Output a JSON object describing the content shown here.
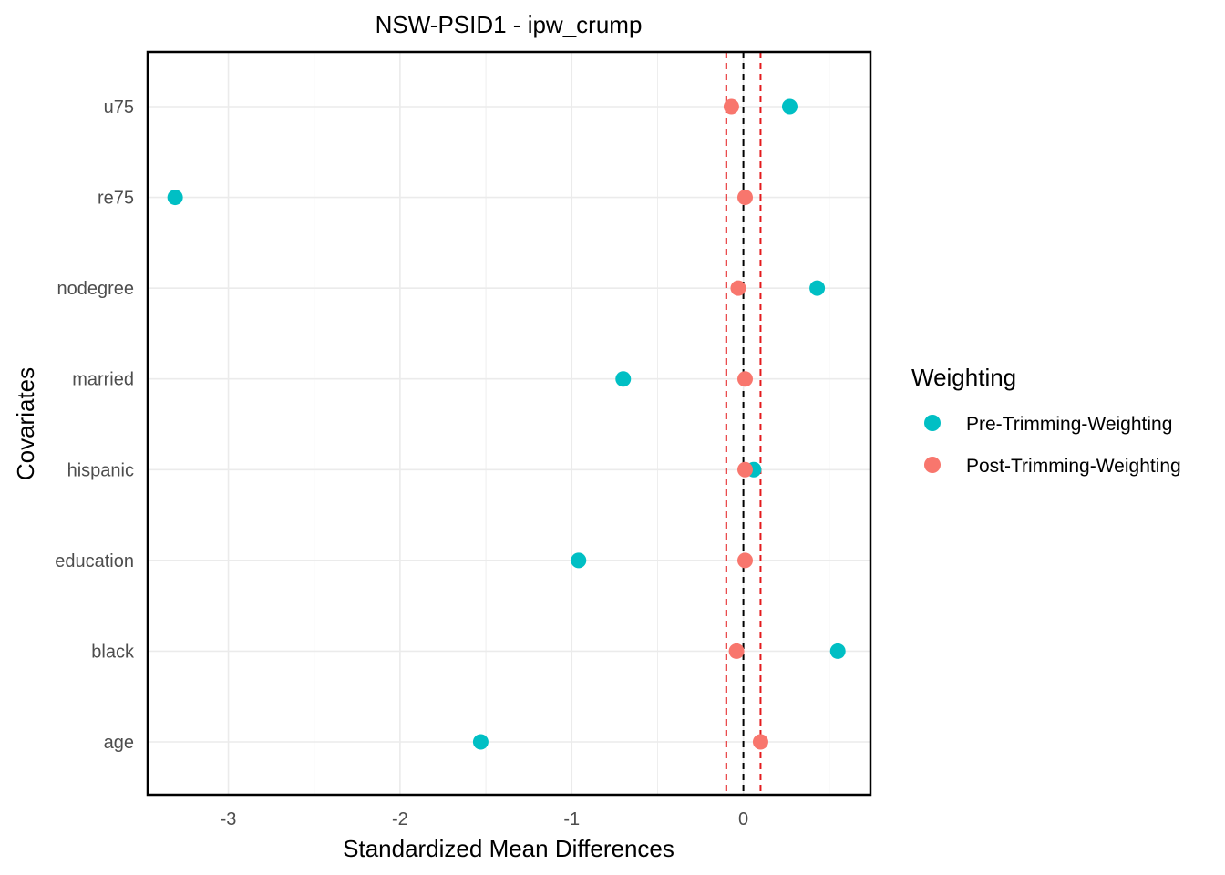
{
  "chart_data": {
    "type": "scatter",
    "title": "NSW-PSID1 - ipw_crump",
    "xlabel": "Standardized Mean Differences",
    "ylabel": "Covariates",
    "categories": [
      "age",
      "black",
      "education",
      "hispanic",
      "married",
      "nodegree",
      "re75",
      "u75"
    ],
    "x_ticks": [
      -3,
      -2,
      -1,
      0
    ],
    "xlim": [
      -3.47,
      0.74
    ],
    "grid": true,
    "reference_lines": {
      "center": 0,
      "threshold": [
        -0.1,
        0.1
      ]
    },
    "legend": {
      "title": "Weighting",
      "position": "right"
    },
    "series": [
      {
        "name": "Pre-Trimming-Weighting",
        "color": "#00BFC4",
        "values": [
          -1.53,
          0.55,
          -0.96,
          0.06,
          -0.7,
          0.43,
          -3.31,
          0.27
        ]
      },
      {
        "name": "Post-Trimming-Weighting",
        "color": "#F8766D",
        "values": [
          0.1,
          -0.04,
          0.01,
          0.01,
          0.01,
          -0.03,
          0.01,
          -0.07
        ]
      }
    ],
    "colors": {
      "grid": "#ebebeb",
      "panel_border": "#000000",
      "center_line": "#000000",
      "threshold_line": "#e41a1c"
    }
  }
}
